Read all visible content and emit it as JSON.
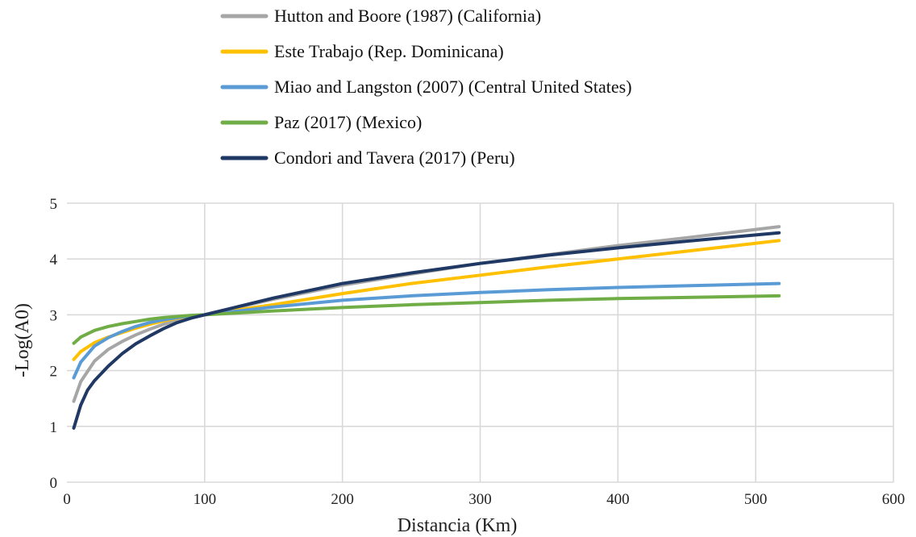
{
  "chart_data": {
    "type": "line",
    "title": "",
    "xlabel": "Distancia (Km)",
    "ylabel": "-Log(A0)",
    "xlim": [
      0,
      600
    ],
    "ylim": [
      0,
      5
    ],
    "xticks": [
      0,
      100,
      200,
      300,
      400,
      500,
      600
    ],
    "yticks": [
      0,
      1,
      2,
      3,
      4,
      5
    ],
    "grid": true,
    "legend_position": "top",
    "series": [
      {
        "name": "Hutton and Boore (1987) (California)",
        "color": "#a6a6a6",
        "x": [
          5,
          10,
          20,
          30,
          40,
          50,
          60,
          70,
          80,
          90,
          100,
          150,
          200,
          250,
          300,
          350,
          400,
          450,
          517
        ],
        "y": [
          1.45,
          1.8,
          2.17,
          2.38,
          2.52,
          2.64,
          2.74,
          2.83,
          2.9,
          2.95,
          3.0,
          3.28,
          3.53,
          3.73,
          3.92,
          4.08,
          4.24,
          4.38,
          4.58
        ]
      },
      {
        "name": "Este Trabajo (Rep. Dominicana)",
        "color": "#ffc000",
        "x": [
          5,
          10,
          20,
          30,
          40,
          50,
          60,
          70,
          80,
          90,
          100,
          150,
          200,
          250,
          300,
          350,
          400,
          450,
          517
        ],
        "y": [
          2.2,
          2.34,
          2.5,
          2.6,
          2.68,
          2.76,
          2.83,
          2.89,
          2.94,
          2.97,
          3.0,
          3.18,
          3.38,
          3.56,
          3.71,
          3.86,
          4.0,
          4.14,
          4.33
        ]
      },
      {
        "name": "Miao and Langston (2007) (Central United States)",
        "color": "#5b9bd5",
        "x": [
          5,
          10,
          20,
          30,
          40,
          50,
          60,
          70,
          80,
          90,
          100,
          150,
          200,
          250,
          300,
          350,
          400,
          450,
          517
        ],
        "y": [
          1.87,
          2.15,
          2.44,
          2.59,
          2.7,
          2.79,
          2.86,
          2.91,
          2.95,
          2.98,
          3.0,
          3.14,
          3.26,
          3.34,
          3.4,
          3.45,
          3.49,
          3.52,
          3.56
        ]
      },
      {
        "name": "Paz  (2017) (Mexico)",
        "color": "#70ad47",
        "x": [
          5,
          10,
          20,
          30,
          40,
          50,
          60,
          70,
          80,
          90,
          100,
          150,
          200,
          250,
          300,
          350,
          400,
          450,
          517
        ],
        "y": [
          2.49,
          2.6,
          2.72,
          2.79,
          2.84,
          2.88,
          2.92,
          2.95,
          2.97,
          2.99,
          3.0,
          3.07,
          3.13,
          3.18,
          3.22,
          3.26,
          3.29,
          3.31,
          3.34
        ]
      },
      {
        "name": "Condori and Tavera (2017) (Peru)",
        "color": "#203864",
        "x": [
          5,
          10,
          15,
          20,
          30,
          40,
          50,
          60,
          70,
          80,
          90,
          100,
          150,
          200,
          250,
          300,
          350,
          400,
          450,
          517
        ],
        "y": [
          0.97,
          1.38,
          1.65,
          1.82,
          2.08,
          2.3,
          2.48,
          2.62,
          2.75,
          2.86,
          2.94,
          3.0,
          3.3,
          3.56,
          3.75,
          3.92,
          4.07,
          4.2,
          4.32,
          4.47
        ]
      }
    ]
  }
}
